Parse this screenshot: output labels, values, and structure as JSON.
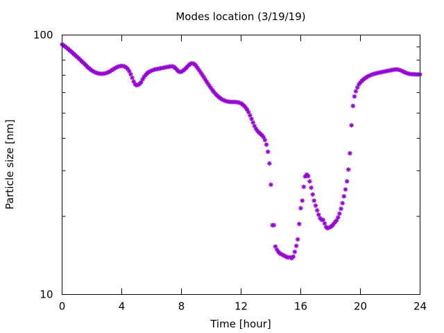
{
  "chart_data": {
    "type": "scatter",
    "title": "Modes location (3/19/19)",
    "xlabel": "Time [hour]",
    "ylabel": "Particle size [nm]",
    "xlim": [
      0,
      24
    ],
    "ylim": [
      10,
      100
    ],
    "yscale": "log",
    "grid": false,
    "legend": "none",
    "xticks": [
      "0",
      "4",
      "8",
      "12",
      "16",
      "20",
      "24"
    ],
    "yticks": [
      "10",
      "100"
    ],
    "marker_color": "#9400d3",
    "marker": "asterisk",
    "series": [
      {
        "x": [
          0.0,
          0.1,
          0.2,
          0.3,
          0.4,
          0.5,
          0.6,
          0.7,
          0.8,
          0.9,
          1.0,
          1.1,
          1.2,
          1.3,
          1.4,
          1.5,
          1.6,
          1.7,
          1.8,
          1.9,
          2.0,
          2.1,
          2.2,
          2.3,
          2.4,
          2.5,
          2.6,
          2.7,
          2.8,
          2.9,
          3.0,
          3.1,
          3.2,
          3.3,
          3.4,
          3.5,
          3.6,
          3.7,
          3.8,
          3.9,
          4.0,
          4.1,
          4.2,
          4.3,
          4.4,
          4.5,
          4.6,
          4.7,
          4.8,
          4.9,
          5.0,
          5.1,
          5.2,
          5.3,
          5.4,
          5.5,
          5.6,
          5.7,
          5.8,
          5.9,
          6.0,
          6.1,
          6.2,
          6.3,
          6.4,
          6.5,
          6.6,
          6.7,
          6.8,
          6.9,
          7.0,
          7.1,
          7.2,
          7.3,
          7.4,
          7.5,
          7.6,
          7.7,
          7.8,
          7.9,
          8.0,
          8.1,
          8.2,
          8.3,
          8.4,
          8.5,
          8.6,
          8.7,
          8.8,
          8.9,
          9.0,
          9.1,
          9.2,
          9.3,
          9.4,
          9.5,
          9.6,
          9.7,
          9.8,
          9.9,
          10.0,
          10.1,
          10.2,
          10.3,
          10.4,
          10.5,
          10.6,
          10.7,
          10.8,
          10.9,
          11.0,
          11.1,
          11.2,
          11.3,
          11.4,
          11.5,
          11.6,
          11.7,
          11.8,
          11.9,
          12.0,
          12.1,
          12.2,
          12.3,
          12.4,
          12.5,
          12.6,
          12.7,
          12.8,
          12.9,
          13.0,
          13.1,
          13.2,
          13.3,
          13.4,
          13.5,
          13.6,
          13.7,
          13.8,
          13.9,
          14.0,
          14.1
        ],
        "y": [
          92,
          91.2,
          90.3,
          89.4,
          88.4,
          87.4,
          86.4,
          85.4,
          84.4,
          83.4,
          82.4,
          81.4,
          80.4,
          79.4,
          78.4,
          77.4,
          76.4,
          75.4,
          74.5,
          73.7,
          73,
          72.4,
          71.9,
          71.5,
          71.2,
          71,
          70.9,
          70.9,
          71,
          71.2,
          71.5,
          71.9,
          72.4,
          73,
          73.6,
          74.2,
          74.8,
          75.3,
          75.7,
          75.9,
          76,
          75.9,
          75.6,
          75,
          74,
          72.5,
          70.6,
          68.4,
          66.2,
          64.6,
          64,
          64.3,
          64.8,
          65.8,
          67.5,
          69,
          70.2,
          71.2,
          71.9,
          72.5,
          72.9,
          73.3,
          73.6,
          73.8,
          74,
          74.2,
          74.4,
          74.6,
          74.8,
          75,
          75.2,
          75.4,
          75.6,
          75.7,
          75.7,
          75.4,
          74.5,
          73.4,
          72.5,
          72,
          72.2,
          72.8,
          73.6,
          74.5,
          75.5,
          76.6,
          77.4,
          77.8,
          77.6,
          77,
          75.8,
          74.4,
          73,
          71.6,
          70.2,
          68.8,
          67.4,
          66,
          64.7,
          63.4,
          62.2,
          61.1,
          60.1,
          59.2,
          58.4,
          57.7,
          57.1,
          56.6,
          56.2,
          55.9,
          55.6,
          55.4,
          55.3,
          55.2,
          55.2,
          55.2,
          55.2,
          55.1,
          55,
          54.8,
          54.5,
          54,
          53.4,
          52.6,
          51.6,
          50.4,
          49,
          47.5,
          46,
          44.6,
          43.5,
          42.7,
          42.1,
          41.6,
          41.1,
          40.4,
          39.4,
          37.8,
          35.5,
          32,
          26.5,
          18.5
        ]
      },
      {
        "x": [
          14.2,
          14.3,
          14.4,
          14.5,
          14.6,
          14.7,
          14.8,
          14.9,
          15.0,
          15.1,
          15.2,
          15.3,
          15.4,
          15.5,
          15.6,
          15.7,
          15.8,
          15.9,
          16.0,
          16.1,
          16.2,
          16.3,
          16.4,
          16.5,
          16.6,
          16.7,
          16.8,
          16.9,
          17.0,
          17.1,
          17.2,
          17.3,
          17.4,
          17.5,
          17.6,
          17.7,
          17.8,
          17.9,
          18.0,
          18.1,
          18.2,
          18.3,
          18.4,
          18.5,
          18.6,
          18.7,
          18.8,
          18.9,
          19.0,
          19.1,
          19.2,
          19.3,
          19.4,
          19.5,
          19.6,
          19.7,
          19.8,
          19.9,
          20.0,
          20.1,
          20.2,
          20.3,
          20.4,
          20.5,
          20.6,
          20.7,
          20.8,
          20.9,
          21.0,
          21.1,
          21.2,
          21.3,
          21.4,
          21.5,
          21.6,
          21.7,
          21.8,
          21.9,
          22.0,
          22.1,
          22.2,
          22.3,
          22.4,
          22.5,
          22.6,
          22.7,
          22.8,
          22.9,
          23.0,
          23.1,
          23.2,
          23.3,
          23.4,
          23.5,
          23.6,
          23.7,
          23.8,
          23.9,
          24.0
        ],
        "y": [
          18.5,
          15.3,
          14.9,
          14.6,
          14.4,
          14.3,
          14.2,
          14.1,
          14.0,
          13.9,
          13.9,
          13.9,
          13.8,
          14.0,
          14.6,
          15.4,
          16.3,
          18.7,
          21.5,
          23,
          26,
          28.5,
          29,
          28.6,
          27.3,
          25.8,
          24.3,
          23.0,
          22.0,
          21.1,
          20.3,
          19.7,
          19.4,
          19.4,
          18.8,
          18.2,
          18.0,
          18.1,
          18.2,
          18.4,
          18.7,
          19.0,
          19.3,
          19.8,
          20.5,
          21.4,
          22.5,
          23.9,
          25.4,
          27.3,
          30.3,
          35,
          44.9,
          53.3,
          58,
          60.7,
          62.8,
          64.5,
          65.6,
          66.6,
          67.4,
          68.1,
          68.7,
          69.3,
          69.7,
          70.1,
          70.5,
          70.8,
          71.0,
          71.3,
          71.5,
          71.7,
          71.9,
          72.1,
          72.3,
          72.5,
          72.7,
          72.9,
          73.1,
          73.3,
          73.5,
          73.6,
          73.7,
          73.6,
          73.4,
          73.1,
          72.7,
          72.2,
          71.7,
          71.3,
          71.0,
          70.8,
          70.7,
          70.6,
          70.6,
          70.5,
          70.5,
          70.5,
          70.5
        ]
      }
    ]
  }
}
